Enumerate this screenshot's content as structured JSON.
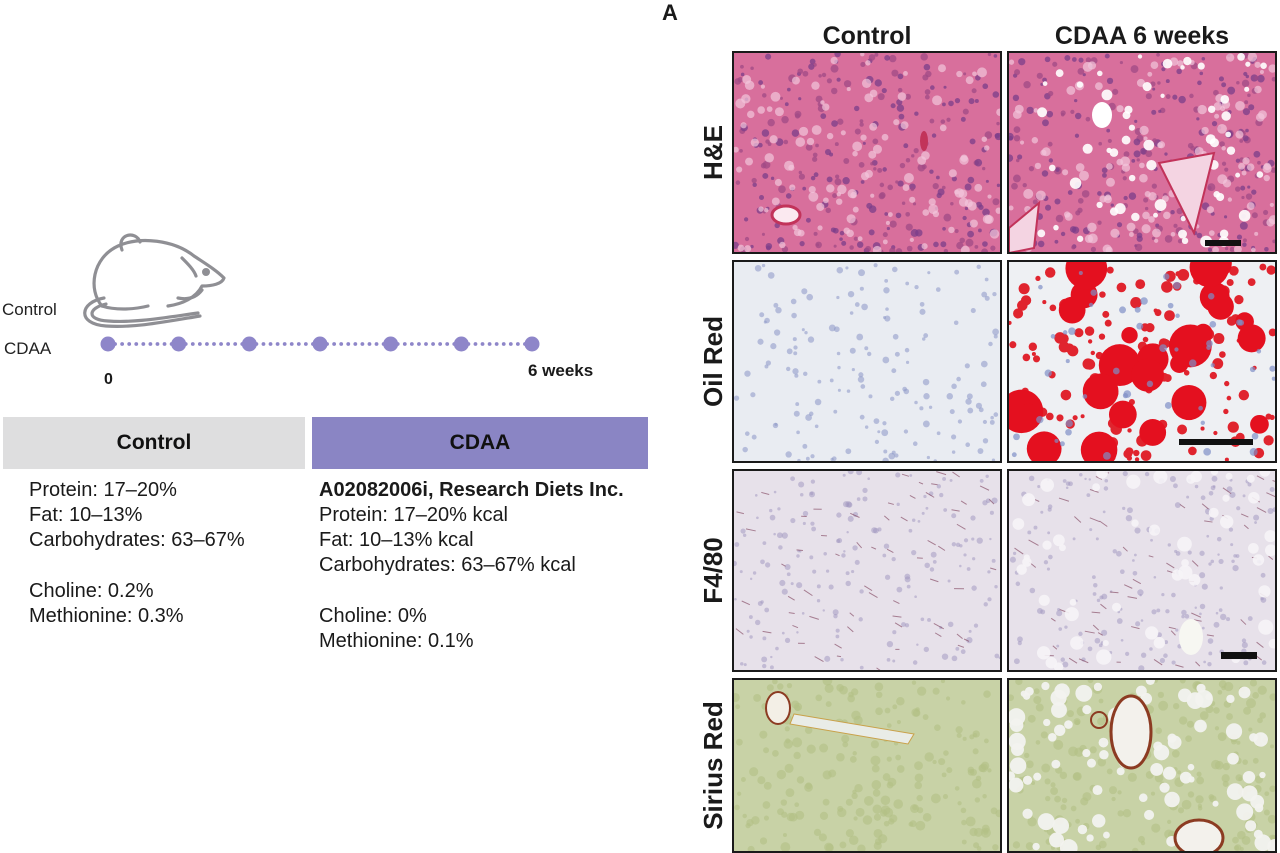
{
  "panel_letter": "A",
  "timeline": {
    "group_labels": [
      "Control",
      "CDAA"
    ],
    "start_label": "0",
    "end_label": "6 weeks",
    "time_points": 7,
    "color": "#8e86c9"
  },
  "diets": {
    "control": {
      "header": "Control",
      "header_color": "#dededf",
      "lines": [
        "Protein: 17–20%",
        "Fat: 10–13%",
        "Carbohydrates: 63–67%"
      ],
      "supplements": [
        "Choline: 0.2%",
        "Methionine: 0.3%"
      ]
    },
    "cdaa": {
      "header": "CDAA",
      "header_color": "#8a85c4",
      "product": "A02082006i, Research Diets Inc.",
      "lines": [
        "Protein: 17–20% kcal",
        "Fat: 10–13% kcal",
        "Carbohydrates: 63–67% kcal"
      ],
      "supplements": [
        "Choline: 0%",
        "Methionine: 0.1%"
      ]
    }
  },
  "histology": {
    "columns": [
      "Control",
      "CDAA 6 weeks"
    ],
    "rows": [
      {
        "stain": "H&E",
        "tiles": [
          "he-control-image",
          "he-cdaa-image"
        ]
      },
      {
        "stain": "Oil Red",
        "tiles": [
          "oilred-control-image",
          "oilred-cdaa-image"
        ]
      },
      {
        "stain": "F4/80",
        "tiles": [
          "f480-control-image",
          "f480-cdaa-image"
        ]
      },
      {
        "stain": "Sirius Red",
        "tiles": [
          "siriusred-control-image",
          "siriusred-cdaa-image"
        ]
      }
    ]
  }
}
